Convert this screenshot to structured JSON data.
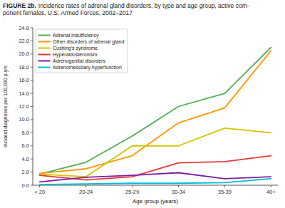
{
  "chart_data": {
    "type": "line",
    "title": "FIGURE 2b.",
    "subtitle": "Incidence rates of adrenal gland disorders, by type and age group, active com-\nponent females, U.S. Armed Forces, 2002–2017",
    "x_label": "Age group (years)",
    "y_label": "Incident diagnoses per 100,000 p-yrs",
    "categories": [
      "< 20",
      "20-24",
      "25-29",
      "30-34",
      "35-39",
      "40+"
    ],
    "series": [
      {
        "name": "Adrenal Insufficiency",
        "color": "#4caf50",
        "values": [
          1.7,
          3.5,
          7.5,
          12.0,
          14.0,
          21.0
        ]
      },
      {
        "name": "Other disorders of adrenal gland",
        "color": "#ff9800",
        "values": [
          1.8,
          2.5,
          4.5,
          9.5,
          11.8,
          20.5
        ]
      },
      {
        "name": "Cushing's syndrome",
        "color": "#d4c200",
        "values": [
          1.7,
          1.3,
          6.0,
          6.0,
          8.7,
          8.0
        ]
      },
      {
        "name": "Hyperaldosteronism",
        "color": "#e53935",
        "values": [
          1.5,
          0.8,
          1.3,
          3.4,
          3.6,
          4.5
        ]
      },
      {
        "name": "Adrenogenital disorders",
        "color": "#7b1fa2",
        "values": [
          0.5,
          1.2,
          1.5,
          1.9,
          1.0,
          1.3
        ]
      },
      {
        "name": "Adrenomedullary hyperfunction",
        "color": "#00bcd4",
        "values": [
          0.1,
          0.2,
          0.3,
          0.3,
          0.4,
          1.0
        ]
      }
    ],
    "ylim": [
      0,
      24.0
    ],
    "yticks": [
      {
        "value": 0.0,
        "label": "0.0"
      },
      {
        "value": 2.0,
        "label": "2.0"
      },
      {
        "value": 4.0,
        "label": "4.0"
      },
      {
        "value": 6.0,
        "label": "6.0"
      },
      {
        "value": 8.0,
        "label": "8.0"
      },
      {
        "value": 10.0,
        "label": "10.0"
      },
      {
        "value": 12.0,
        "label": "12.0"
      },
      {
        "value": 14.0,
        "label": "14.0"
      },
      {
        "value": 16.0,
        "label": "16.0"
      },
      {
        "value": 18.0,
        "label": "18.0"
      },
      {
        "value": 20.0,
        "label": "20.0"
      },
      {
        "value": 22.0,
        "label": "22.0"
      },
      {
        "value": 24.0,
        "label": "24.0"
      }
    ],
    "grid": false,
    "legend": "upper left"
  }
}
